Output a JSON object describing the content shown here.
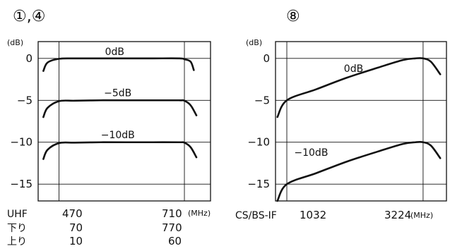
{
  "chart_data": [
    {
      "type": "line",
      "title": "①,④",
      "y_unit": "(dB)",
      "x_unit": "(MHz)",
      "x_range": [
        430,
        760
      ],
      "ylim": [
        -17,
        2
      ],
      "y_ticks": [
        {
          "value": 0,
          "label": "0"
        },
        {
          "value": -5,
          "label": "−5"
        },
        {
          "value": -10,
          "label": "−10"
        },
        {
          "value": -15,
          "label": "−15"
        }
      ],
      "x_rows": [
        {
          "label": "UHF",
          "values": [
            "470",
            "710"
          ]
        },
        {
          "label": "下り",
          "values": [
            "70",
            "770"
          ]
        },
        {
          "label": "上り",
          "values": [
            "10",
            "60"
          ]
        }
      ],
      "x_tick_positions": [
        470,
        710
      ],
      "series": [
        {
          "name": "0dB",
          "label_at": [
            558,
            0.4
          ],
          "x": [
            440,
            448,
            470,
            500,
            550,
            600,
            650,
            700,
            710,
            722,
            728
          ],
          "y": [
            -1.5,
            -0.5,
            -0.05,
            0,
            0,
            0,
            0,
            0,
            -0.1,
            -0.4,
            -1.4
          ]
        },
        {
          "name": "−5dB",
          "label_at": [
            556,
            -4.5
          ],
          "x": [
            440,
            448,
            470,
            500,
            550,
            600,
            650,
            700,
            710,
            722,
            733
          ],
          "y": [
            -7.0,
            -5.9,
            -5.1,
            -5.05,
            -5.0,
            -5.0,
            -5.0,
            -5.0,
            -5.05,
            -5.6,
            -6.8
          ]
        },
        {
          "name": "−10dB",
          "label_at": [
            550,
            -9.5
          ],
          "x": [
            440,
            448,
            470,
            500,
            550,
            600,
            650,
            700,
            710,
            722,
            733
          ],
          "y": [
            -12.0,
            -10.9,
            -10.1,
            -10.05,
            -10.0,
            -10.0,
            -10.0,
            -10.0,
            -10.05,
            -10.6,
            -11.8
          ]
        }
      ]
    },
    {
      "type": "line",
      "title": "⑧",
      "y_unit": "(dB)",
      "x_unit": "(MHz)",
      "x_range": [
        850,
        3600
      ],
      "ylim": [
        -17,
        2
      ],
      "y_ticks": [
        {
          "value": 0,
          "label": "0"
        },
        {
          "value": -5,
          "label": "−5"
        },
        {
          "value": -10,
          "label": "−10"
        },
        {
          "value": -15,
          "label": "−15"
        }
      ],
      "x_rows": [
        {
          "label": "CS/BS-IF",
          "values": [
            "1032",
            "3224"
          ]
        }
      ],
      "x_tick_positions": [
        1032,
        3224
      ],
      "series": [
        {
          "name": "0dB",
          "label_at": [
            1950,
            -1.6
          ],
          "x": [
            880,
            1032,
            1500,
            2000,
            2500,
            2900,
            3100,
            3224,
            3350,
            3500
          ],
          "y": [
            -7.0,
            -5.0,
            -3.7,
            -2.3,
            -1.1,
            -0.2,
            0.0,
            0.0,
            -0.4,
            -1.9
          ]
        },
        {
          "name": "−10dB",
          "label_at": [
            1150,
            -11.6
          ],
          "x": [
            880,
            1032,
            1500,
            2000,
            2500,
            2900,
            3100,
            3224,
            3350,
            3500
          ],
          "y": [
            -17.0,
            -15.0,
            -13.7,
            -12.3,
            -11.1,
            -10.2,
            -10.0,
            -10.0,
            -10.4,
            -11.9
          ]
        }
      ]
    }
  ]
}
